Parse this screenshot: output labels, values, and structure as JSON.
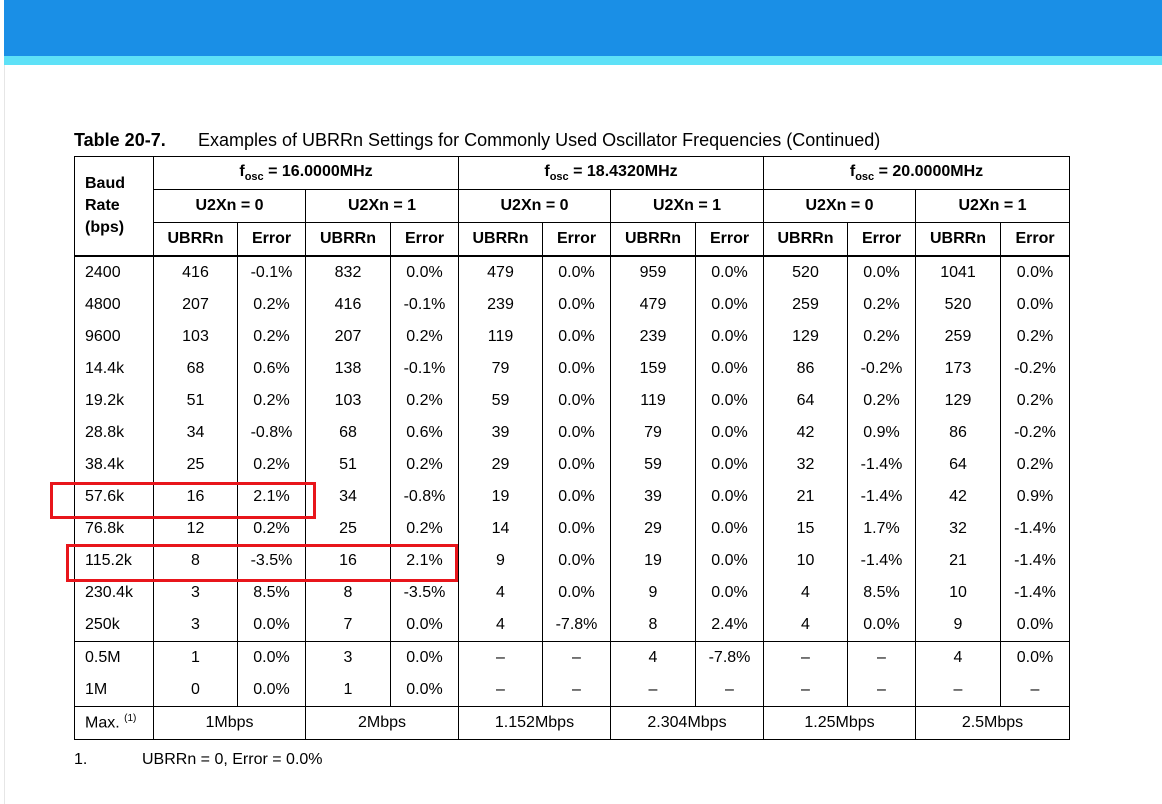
{
  "caption": {
    "number": "Table 20-7.",
    "title": "Examples of UBRRn Settings for Commonly Used Oscillator Frequencies (Continued)"
  },
  "table": {
    "baud_header": [
      "Baud",
      "Rate",
      "(bps)"
    ],
    "fosc_prefix": "f",
    "fosc_sub": "osc",
    "oscillators": [
      " = 16.0000MHz",
      " = 18.4320MHz",
      " = 20.0000MHz"
    ],
    "u2x_labels": [
      "U2Xn = 0",
      "U2Xn = 1",
      "U2Xn = 0",
      "U2Xn = 1",
      "U2Xn = 0",
      "U2Xn = 1"
    ],
    "col_ubrr": "UBRRn",
    "col_error": "Error",
    "rows": [
      [
        "2400",
        "416",
        "-0.1%",
        "832",
        "0.0%",
        "479",
        "0.0%",
        "959",
        "0.0%",
        "520",
        "0.0%",
        "1041",
        "0.0%"
      ],
      [
        "4800",
        "207",
        "0.2%",
        "416",
        "-0.1%",
        "239",
        "0.0%",
        "479",
        "0.0%",
        "259",
        "0.2%",
        "520",
        "0.0%"
      ],
      [
        "9600",
        "103",
        "0.2%",
        "207",
        "0.2%",
        "119",
        "0.0%",
        "239",
        "0.0%",
        "129",
        "0.2%",
        "259",
        "0.2%"
      ],
      [
        "14.4k",
        "68",
        "0.6%",
        "138",
        "-0.1%",
        "79",
        "0.0%",
        "159",
        "0.0%",
        "86",
        "-0.2%",
        "173",
        "-0.2%"
      ],
      [
        "19.2k",
        "51",
        "0.2%",
        "103",
        "0.2%",
        "59",
        "0.0%",
        "119",
        "0.0%",
        "64",
        "0.2%",
        "129",
        "0.2%"
      ],
      [
        "28.8k",
        "34",
        "-0.8%",
        "68",
        "0.6%",
        "39",
        "0.0%",
        "79",
        "0.0%",
        "42",
        "0.9%",
        "86",
        "-0.2%"
      ],
      [
        "38.4k",
        "25",
        "0.2%",
        "51",
        "0.2%",
        "29",
        "0.0%",
        "59",
        "0.0%",
        "32",
        "-1.4%",
        "64",
        "0.2%"
      ],
      [
        "57.6k",
        "16",
        "2.1%",
        "34",
        "-0.8%",
        "19",
        "0.0%",
        "39",
        "0.0%",
        "21",
        "-1.4%",
        "42",
        "0.9%"
      ],
      [
        "76.8k",
        "12",
        "0.2%",
        "25",
        "0.2%",
        "14",
        "0.0%",
        "29",
        "0.0%",
        "15",
        "1.7%",
        "32",
        "-1.4%"
      ],
      [
        "115.2k",
        "8",
        "-3.5%",
        "16",
        "2.1%",
        "9",
        "0.0%",
        "19",
        "0.0%",
        "10",
        "-1.4%",
        "21",
        "-1.4%"
      ],
      [
        "230.4k",
        "3",
        "8.5%",
        "8",
        "-3.5%",
        "4",
        "0.0%",
        "9",
        "0.0%",
        "4",
        "8.5%",
        "10",
        "-1.4%"
      ],
      [
        "250k",
        "3",
        "0.0%",
        "7",
        "0.0%",
        "4",
        "-7.8%",
        "8",
        "2.4%",
        "4",
        "0.0%",
        "9",
        "0.0%"
      ],
      [
        "0.5M",
        "1",
        "0.0%",
        "3",
        "0.0%",
        "–",
        "–",
        "4",
        "-7.8%",
        "–",
        "–",
        "4",
        "0.0%"
      ],
      [
        "1M",
        "0",
        "0.0%",
        "1",
        "0.0%",
        "–",
        "–",
        "–",
        "–",
        "–",
        "–",
        "–",
        "–"
      ]
    ],
    "max_label": "Max.",
    "max_note": "(1)",
    "max_values": [
      "1Mbps",
      "2Mbps",
      "1.152Mbps",
      "2.304Mbps",
      "1.25Mbps",
      "2.5Mbps"
    ]
  },
  "footnote": {
    "number": "1.",
    "text": "UBRRn = 0, Error = 0.0%"
  },
  "colors": {
    "header_bar": "#1a8fe6",
    "header_accent": "#5ee1f7",
    "highlight": "#e8151b"
  }
}
